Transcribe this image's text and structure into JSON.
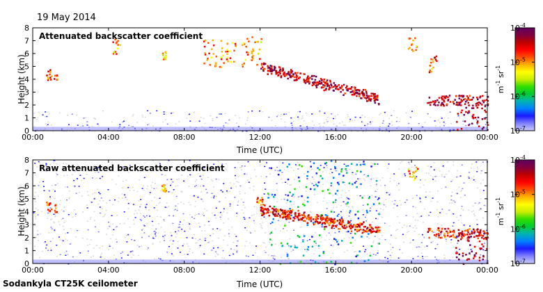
{
  "date_label": "19 May 2014",
  "footer": "Sodankyla CT25K ceilometer",
  "colors": {
    "background_noise": "#d9d9d9",
    "colormap": [
      "#ccccff",
      "#8080ff",
      "#1a1aff",
      "#0080ff",
      "#00b3b3",
      "#00cc33",
      "#33dd00",
      "#ccee00",
      "#ffff00",
      "#ffb000",
      "#ff5000",
      "#ff0000",
      "#c00000",
      "#800040",
      "#600060"
    ]
  },
  "chart_data": [
    {
      "type": "heatmap",
      "title": "Attenuated backscatter coefficient",
      "xlabel": "Time (UTC)",
      "ylabel": "Height (km)",
      "x_ticks": [
        "00:00",
        "04:00",
        "08:00",
        "12:00",
        "16:00",
        "20:00",
        "00:00"
      ],
      "y_ticks": [
        "0",
        "1",
        "2",
        "3",
        "4",
        "5",
        "6",
        "7",
        "8"
      ],
      "xlim_hours": [
        0,
        24
      ],
      "ylim_km": [
        0,
        8
      ],
      "colorbar": {
        "scale": "log",
        "label": "m-1 sr-1",
        "label_base": "m",
        "label_exp1": "-1",
        "label_mid": " sr",
        "label_exp2": "-1",
        "range": [
          1e-07,
          0.0001
        ],
        "ticks": [
          {
            "base": "10",
            "exp": "-4"
          },
          {
            "base": "10",
            "exp": "-5"
          },
          {
            "base": "10",
            "exp": "-6"
          },
          {
            "base": "10",
            "exp": "-7"
          }
        ]
      },
      "features": [
        {
          "name": "aerosol-layer",
          "t": [
            0.7,
            1.3
          ],
          "h": [
            4.0,
            4.8
          ],
          "level": 10.5
        },
        {
          "name": "high-cloud-04h",
          "t": [
            4.2,
            4.6
          ],
          "h": [
            5.8,
            7.2
          ],
          "level": 9
        },
        {
          "name": "high-cloud-07h",
          "t": [
            6.8,
            7.0
          ],
          "h": [
            5.6,
            6.2
          ],
          "level": 8.5
        },
        {
          "name": "cloud-09-10h",
          "t": [
            9.0,
            10.7
          ],
          "h": [
            5.0,
            7.2
          ],
          "level": 9.5
        },
        {
          "name": "cloud-11-12h",
          "t": [
            11.0,
            12.1
          ],
          "h": [
            5.0,
            7.4
          ],
          "level": 9
        },
        {
          "name": "descending-layer",
          "t": [
            12.0,
            18.3
          ],
          "h": [
            5.0,
            2.5
          ],
          "level": 12
        },
        {
          "name": "midlevel-cloud-20h",
          "t": [
            19.8,
            20.3
          ],
          "h": [
            6.2,
            7.3
          ],
          "level": 10
        },
        {
          "name": "cloud-21h",
          "t": [
            20.8,
            21.3
          ],
          "h": [
            4.5,
            6.0
          ],
          "level": 10
        },
        {
          "name": "low-cloud-base",
          "t": [
            20.8,
            24.0
          ],
          "h": [
            2.0,
            2.8
          ],
          "level": 12
        },
        {
          "name": "precipitation",
          "t": [
            22.3,
            24.0
          ],
          "h": [
            0,
            2.5
          ],
          "level": 12.5
        }
      ]
    },
    {
      "type": "heatmap",
      "title": "Raw attenuated backscatter coefficient",
      "xlabel": "Time (UTC)",
      "ylabel": "Height (km)",
      "x_ticks": [
        "00:00",
        "04:00",
        "08:00",
        "12:00",
        "16:00",
        "20:00",
        "00:00"
      ],
      "y_ticks": [
        "0",
        "1",
        "2",
        "3",
        "4",
        "5",
        "6",
        "7",
        "8"
      ],
      "xlim_hours": [
        0,
        24
      ],
      "ylim_km": [
        0,
        8
      ],
      "colorbar": {
        "scale": "log",
        "label": "m-1 sr-1",
        "label_base": "m",
        "label_exp1": "-1",
        "label_mid": " sr",
        "label_exp2": "-1",
        "range": [
          1e-07,
          0.0001
        ],
        "ticks": [
          {
            "base": "10",
            "exp": "-4"
          },
          {
            "base": "10",
            "exp": "-5"
          },
          {
            "base": "10",
            "exp": "-6"
          },
          {
            "base": "10",
            "exp": "-7"
          }
        ]
      },
      "features": [
        {
          "name": "aerosol-layer",
          "t": [
            0.7,
            1.3
          ],
          "h": [
            4.0,
            4.8
          ],
          "level": 10.5
        },
        {
          "name": "high-cloud-07h",
          "t": [
            6.8,
            7.0
          ],
          "h": [
            5.6,
            6.2
          ],
          "level": 8.5
        },
        {
          "name": "cloud-11-12h",
          "t": [
            11.8,
            12.1
          ],
          "h": [
            4.5,
            5.2
          ],
          "level": 10
        },
        {
          "name": "noisy-band",
          "t": [
            12.3,
            18.3
          ],
          "h": [
            0,
            8.0
          ],
          "level": 4
        },
        {
          "name": "descending-layer",
          "t": [
            12.0,
            18.3
          ],
          "h": [
            4.2,
            2.6
          ],
          "level": 11
        },
        {
          "name": "midlevel-cloud-20h",
          "t": [
            19.8,
            20.3
          ],
          "h": [
            6.5,
            7.5
          ],
          "level": 9
        },
        {
          "name": "low-cloud-base",
          "t": [
            20.8,
            24.0
          ],
          "h": [
            2.0,
            2.8
          ],
          "level": 11
        },
        {
          "name": "precipitation",
          "t": [
            22.3,
            24.0
          ],
          "h": [
            0,
            2.5
          ],
          "level": 12.5
        }
      ]
    }
  ]
}
